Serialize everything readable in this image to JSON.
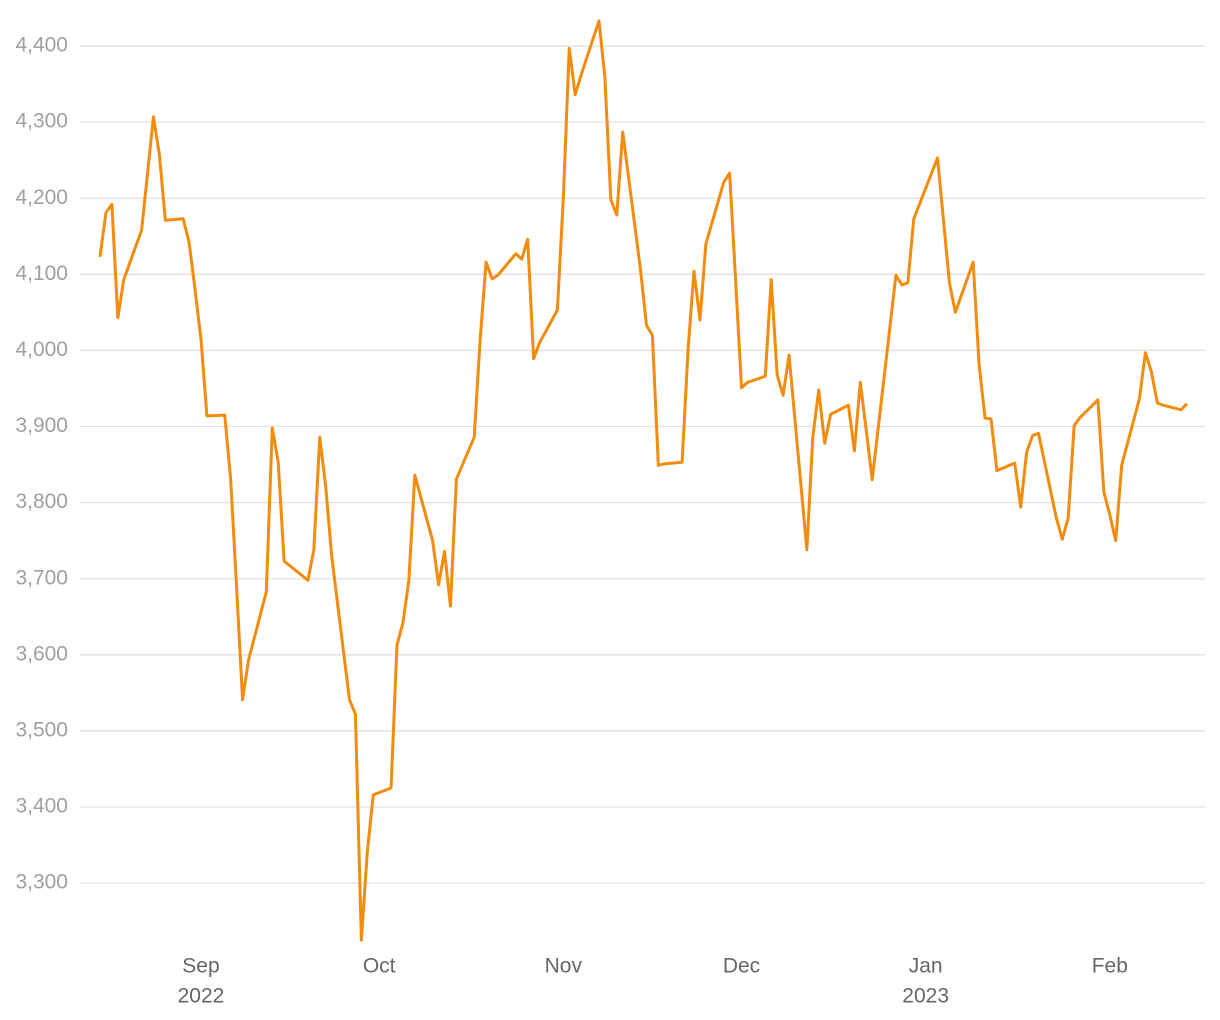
{
  "chart_data": {
    "type": "line",
    "x": [
      "2022-08-15",
      "2022-08-16",
      "2022-08-17",
      "2022-08-18",
      "2022-08-19",
      "2022-08-22",
      "2022-08-24",
      "2022-08-25",
      "2022-08-26",
      "2022-08-29",
      "2022-08-30",
      "2022-08-31",
      "2022-09-01",
      "2022-09-02",
      "2022-09-05",
      "2022-09-06",
      "2022-09-07",
      "2022-09-08",
      "2022-09-09",
      "2022-09-12",
      "2022-09-13",
      "2022-09-14",
      "2022-09-15",
      "2022-09-19",
      "2022-09-20",
      "2022-09-21",
      "2022-09-22",
      "2022-09-23",
      "2022-09-26",
      "2022-09-27",
      "2022-09-28",
      "2022-09-29",
      "2022-09-30",
      "2022-10-03",
      "2022-10-04",
      "2022-10-05",
      "2022-10-06",
      "2022-10-07",
      "2022-10-10",
      "2022-10-11",
      "2022-10-12",
      "2022-10-13",
      "2022-10-14",
      "2022-10-17",
      "2022-10-18",
      "2022-10-19",
      "2022-10-20",
      "2022-10-21",
      "2022-10-24",
      "2022-10-25",
      "2022-10-26",
      "2022-10-27",
      "2022-10-28",
      "2022-10-31",
      "2022-11-01",
      "2022-11-02",
      "2022-11-03",
      "2022-11-04",
      "2022-11-07",
      "2022-11-08",
      "2022-11-09",
      "2022-11-10",
      "2022-11-11",
      "2022-11-14",
      "2022-11-15",
      "2022-11-16",
      "2022-11-17",
      "2022-11-18",
      "2022-11-21",
      "2022-11-22",
      "2022-11-23",
      "2022-11-24",
      "2022-11-25",
      "2022-11-28",
      "2022-11-29",
      "2022-11-30",
      "2022-12-01",
      "2022-12-02",
      "2022-12-05",
      "2022-12-06",
      "2022-12-07",
      "2022-12-08",
      "2022-12-09",
      "2022-12-12",
      "2022-12-13",
      "2022-12-14",
      "2022-12-15",
      "2022-12-16",
      "2022-12-19",
      "2022-12-20",
      "2022-12-21",
      "2022-12-22",
      "2022-12-23",
      "2022-12-27",
      "2022-12-28",
      "2022-12-29",
      "2022-12-30",
      "2023-01-03",
      "2023-01-04",
      "2023-01-05",
      "2023-01-06",
      "2023-01-09",
      "2023-01-10",
      "2023-01-11",
      "2023-01-12",
      "2023-01-13",
      "2023-01-16",
      "2023-01-17",
      "2023-01-18",
      "2023-01-19",
      "2023-01-20",
      "2023-01-23",
      "2023-01-24",
      "2023-01-25",
      "2023-01-26",
      "2023-01-27",
      "2023-01-30",
      "2023-01-31",
      "2023-02-01",
      "2023-02-02",
      "2023-02-03",
      "2023-02-06",
      "2023-02-07",
      "2023-02-08",
      "2023-02-09",
      "2023-02-10",
      "2023-02-13",
      "2023-02-14"
    ],
    "series": [
      {
        "color": "#f28c0f",
        "values": [
          4123,
          4181,
          4192,
          4043,
          4093,
          4158,
          4307,
          4257,
          4171,
          4173,
          4142,
          4080,
          4015,
          3914,
          3915,
          3830,
          3688,
          3541,
          3593,
          3683,
          3898,
          3853,
          3723,
          3698,
          3738,
          3886,
          3821,
          3730,
          3541,
          3522,
          3225,
          3341,
          3416,
          3425,
          3613,
          3642,
          3698,
          3836,
          3750,
          3692,
          3736,
          3664,
          3831,
          3886,
          4014,
          4116,
          4094,
          4099,
          4127,
          4120,
          4146,
          3989,
          4010,
          4053,
          4200,
          4397,
          4336,
          4362,
          4433,
          4359,
          4198,
          4178,
          4287,
          4106,
          4033,
          4020,
          3849,
          3851,
          3853,
          4001,
          4104,
          4040,
          4140,
          4221,
          4233,
          4093,
          3951,
          3958,
          3966,
          4093,
          3968,
          3941,
          3994,
          3738,
          3886,
          3948,
          3878,
          3916,
          3928,
          3868,
          3958,
          3895,
          3830,
          4099,
          4086,
          4089,
          4173,
          4253,
          4171,
          4089,
          4050,
          4116,
          3981,
          3911,
          3910,
          3842,
          3852,
          3794,
          3866,
          3888,
          3891,
          3780,
          3752,
          3780,
          3901,
          3912,
          3935,
          3814,
          3784,
          3750,
          3849,
          3937,
          3997,
          3972,
          3931,
          3928,
          3922,
          3930
        ]
      }
    ],
    "xlim": [
      "2022-08-15",
      "2023-02-14"
    ],
    "xticks": [
      {
        "value": "2022-09",
        "label": "Sep",
        "year": "2022"
      },
      {
        "value": "2022-10",
        "label": "Oct"
      },
      {
        "value": "2022-11",
        "label": "Nov"
      },
      {
        "value": "2022-12",
        "label": "Dec"
      },
      {
        "value": "2023-01",
        "label": "Jan",
        "year": "2023"
      },
      {
        "value": "2023-02",
        "label": "Feb"
      }
    ],
    "ylim": [
      3220,
      4440
    ],
    "yticks": [
      {
        "value": 3300,
        "label": "3,300"
      },
      {
        "value": 3400,
        "label": "3,400"
      },
      {
        "value": 3500,
        "label": "3,500"
      },
      {
        "value": 3600,
        "label": "3,600"
      },
      {
        "value": 3700,
        "label": "3,700"
      },
      {
        "value": 3800,
        "label": "3,800"
      },
      {
        "value": 3900,
        "label": "3,900"
      },
      {
        "value": 4000,
        "label": "4,000"
      },
      {
        "value": 4100,
        "label": "4,100"
      },
      {
        "value": 4200,
        "label": "4,200"
      },
      {
        "value": 4300,
        "label": "4,300"
      },
      {
        "value": 4400,
        "label": "4,400"
      }
    ],
    "grid": true
  }
}
